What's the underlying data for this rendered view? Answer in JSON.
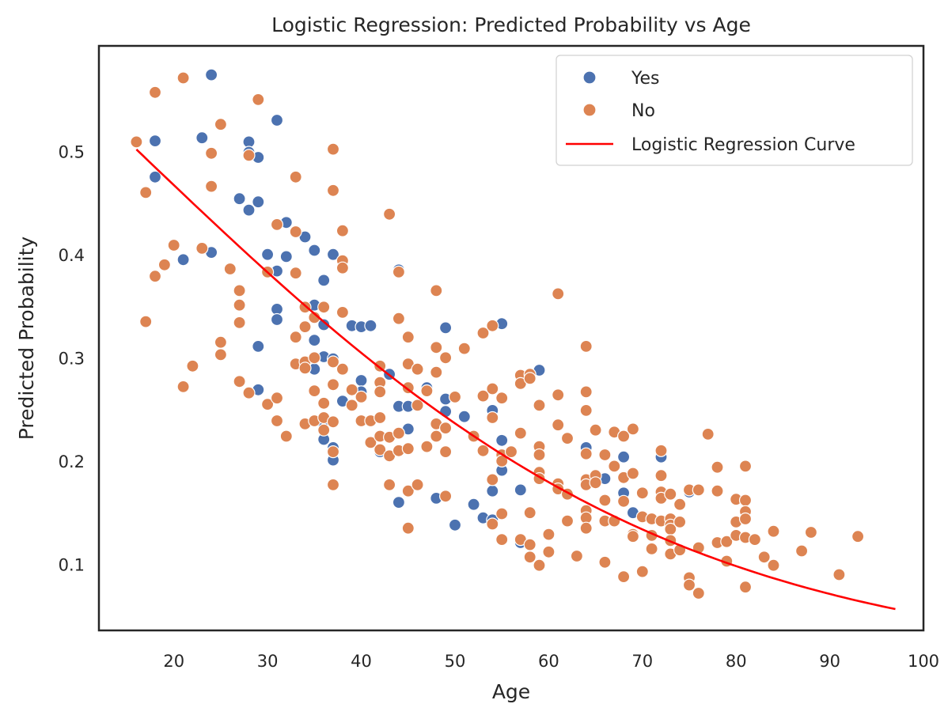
{
  "chart_data": {
    "type": "scatter",
    "title": "Logistic Regression: Predicted Probability vs Age",
    "xlabel": "Age",
    "ylabel": "Predicted Probability",
    "xlim": [
      12,
      100
    ],
    "ylim": [
      0.037,
      0.603
    ],
    "xticks": [
      20,
      30,
      40,
      50,
      60,
      70,
      80,
      90,
      100
    ],
    "yticks": [
      0.1,
      0.2,
      0.3,
      0.4,
      0.5
    ],
    "grid": false,
    "legend_position": "top-right",
    "series": [
      {
        "name": "Yes",
        "kind": "scatter",
        "color": "#4c72b0",
        "points": [
          [
            18,
            0.511
          ],
          [
            18,
            0.476
          ],
          [
            21,
            0.396
          ],
          [
            23,
            0.514
          ],
          [
            24,
            0.575
          ],
          [
            24,
            0.403
          ],
          [
            27,
            0.455
          ],
          [
            28,
            0.51
          ],
          [
            28,
            0.5
          ],
          [
            28,
            0.444
          ],
          [
            29,
            0.495
          ],
          [
            29,
            0.452
          ],
          [
            29,
            0.312
          ],
          [
            29,
            0.27
          ],
          [
            30,
            0.401
          ],
          [
            31,
            0.531
          ],
          [
            31,
            0.385
          ],
          [
            31,
            0.348
          ],
          [
            31,
            0.338
          ],
          [
            32,
            0.432
          ],
          [
            32,
            0.399
          ],
          [
            34,
            0.418
          ],
          [
            35,
            0.405
          ],
          [
            35,
            0.352
          ],
          [
            35,
            0.318
          ],
          [
            35,
            0.29
          ],
          [
            36,
            0.376
          ],
          [
            36,
            0.333
          ],
          [
            36,
            0.302
          ],
          [
            36,
            0.237
          ],
          [
            36,
            0.222
          ],
          [
            37,
            0.401
          ],
          [
            37,
            0.3
          ],
          [
            37,
            0.214
          ],
          [
            37,
            0.202
          ],
          [
            38,
            0.259
          ],
          [
            39,
            0.332
          ],
          [
            40,
            0.331
          ],
          [
            40,
            0.279
          ],
          [
            40,
            0.268
          ],
          [
            41,
            0.332
          ],
          [
            42,
            0.293
          ],
          [
            42,
            0.21
          ],
          [
            43,
            0.285
          ],
          [
            44,
            0.386
          ],
          [
            44,
            0.254
          ],
          [
            44,
            0.161
          ],
          [
            45,
            0.254
          ],
          [
            45,
            0.232
          ],
          [
            47,
            0.272
          ],
          [
            48,
            0.165
          ],
          [
            49,
            0.33
          ],
          [
            49,
            0.261
          ],
          [
            49,
            0.249
          ],
          [
            50,
            0.139
          ],
          [
            51,
            0.244
          ],
          [
            52,
            0.159
          ],
          [
            53,
            0.146
          ],
          [
            54,
            0.25
          ],
          [
            54,
            0.172
          ],
          [
            54,
            0.144
          ],
          [
            55,
            0.334
          ],
          [
            55,
            0.221
          ],
          [
            55,
            0.192
          ],
          [
            57,
            0.173
          ],
          [
            57,
            0.122
          ],
          [
            59,
            0.289
          ],
          [
            64,
            0.214
          ],
          [
            66,
            0.184
          ],
          [
            68,
            0.205
          ],
          [
            68,
            0.17
          ],
          [
            69,
            0.151
          ],
          [
            72,
            0.205
          ],
          [
            75,
            0.171
          ]
        ]
      },
      {
        "name": "No",
        "kind": "scatter",
        "color": "#dd8452",
        "points": [
          [
            16,
            0.51
          ],
          [
            17,
            0.461
          ],
          [
            17,
            0.336
          ],
          [
            18,
            0.558
          ],
          [
            18,
            0.38
          ],
          [
            19,
            0.391
          ],
          [
            20,
            0.41
          ],
          [
            21,
            0.572
          ],
          [
            21,
            0.273
          ],
          [
            22,
            0.293
          ],
          [
            23,
            0.407
          ],
          [
            24,
            0.499
          ],
          [
            24,
            0.467
          ],
          [
            25,
            0.527
          ],
          [
            25,
            0.316
          ],
          [
            25,
            0.304
          ],
          [
            26,
            0.387
          ],
          [
            27,
            0.366
          ],
          [
            27,
            0.352
          ],
          [
            27,
            0.335
          ],
          [
            27,
            0.278
          ],
          [
            28,
            0.497
          ],
          [
            28,
            0.267
          ],
          [
            29,
            0.551
          ],
          [
            30,
            0.384
          ],
          [
            30,
            0.256
          ],
          [
            31,
            0.43
          ],
          [
            31,
            0.262
          ],
          [
            31,
            0.24
          ],
          [
            32,
            0.225
          ],
          [
            33,
            0.476
          ],
          [
            33,
            0.423
          ],
          [
            33,
            0.383
          ],
          [
            33,
            0.321
          ],
          [
            33,
            0.295
          ],
          [
            34,
            0.35
          ],
          [
            34,
            0.331
          ],
          [
            34,
            0.297
          ],
          [
            34,
            0.291
          ],
          [
            34,
            0.237
          ],
          [
            35,
            0.34
          ],
          [
            35,
            0.301
          ],
          [
            35,
            0.269
          ],
          [
            35,
            0.24
          ],
          [
            36,
            0.35
          ],
          [
            36,
            0.257
          ],
          [
            36,
            0.243
          ],
          [
            36,
            0.231
          ],
          [
            37,
            0.503
          ],
          [
            37,
            0.463
          ],
          [
            37,
            0.297
          ],
          [
            37,
            0.275
          ],
          [
            37,
            0.239
          ],
          [
            37,
            0.21
          ],
          [
            37,
            0.178
          ],
          [
            38,
            0.424
          ],
          [
            38,
            0.395
          ],
          [
            38,
            0.388
          ],
          [
            38,
            0.345
          ],
          [
            38,
            0.29
          ],
          [
            39,
            0.27
          ],
          [
            39,
            0.255
          ],
          [
            40,
            0.263
          ],
          [
            40,
            0.24
          ],
          [
            41,
            0.24
          ],
          [
            41,
            0.219
          ],
          [
            42,
            0.293
          ],
          [
            42,
            0.277
          ],
          [
            42,
            0.268
          ],
          [
            42,
            0.243
          ],
          [
            42,
            0.225
          ],
          [
            42,
            0.212
          ],
          [
            43,
            0.44
          ],
          [
            43,
            0.224
          ],
          [
            43,
            0.206
          ],
          [
            43,
            0.178
          ],
          [
            44,
            0.384
          ],
          [
            44,
            0.339
          ],
          [
            44,
            0.228
          ],
          [
            44,
            0.211
          ],
          [
            45,
            0.321
          ],
          [
            45,
            0.295
          ],
          [
            45,
            0.272
          ],
          [
            45,
            0.213
          ],
          [
            45,
            0.172
          ],
          [
            45,
            0.136
          ],
          [
            46,
            0.29
          ],
          [
            46,
            0.255
          ],
          [
            46,
            0.178
          ],
          [
            47,
            0.269
          ],
          [
            47,
            0.215
          ],
          [
            48,
            0.366
          ],
          [
            48,
            0.311
          ],
          [
            48,
            0.287
          ],
          [
            48,
            0.237
          ],
          [
            48,
            0.225
          ],
          [
            49,
            0.301
          ],
          [
            49,
            0.233
          ],
          [
            49,
            0.21
          ],
          [
            49,
            0.167
          ],
          [
            50,
            0.263
          ],
          [
            51,
            0.31
          ],
          [
            52,
            0.225
          ],
          [
            53,
            0.325
          ],
          [
            53,
            0.264
          ],
          [
            53,
            0.211
          ],
          [
            54,
            0.332
          ],
          [
            54,
            0.271
          ],
          [
            54,
            0.243
          ],
          [
            54,
            0.183
          ],
          [
            54,
            0.14
          ],
          [
            55,
            0.262
          ],
          [
            55,
            0.207
          ],
          [
            55,
            0.201
          ],
          [
            55,
            0.15
          ],
          [
            55,
            0.125
          ],
          [
            56,
            0.21
          ],
          [
            57,
            0.284
          ],
          [
            57,
            0.276
          ],
          [
            57,
            0.228
          ],
          [
            57,
            0.125
          ],
          [
            58,
            0.285
          ],
          [
            58,
            0.281
          ],
          [
            58,
            0.151
          ],
          [
            58,
            0.12
          ],
          [
            58,
            0.108
          ],
          [
            59,
            0.255
          ],
          [
            59,
            0.215
          ],
          [
            59,
            0.207
          ],
          [
            59,
            0.19
          ],
          [
            59,
            0.184
          ],
          [
            59,
            0.1
          ],
          [
            60,
            0.13
          ],
          [
            60,
            0.113
          ],
          [
            61,
            0.363
          ],
          [
            61,
            0.265
          ],
          [
            61,
            0.236
          ],
          [
            61,
            0.179
          ],
          [
            61,
            0.174
          ],
          [
            62,
            0.223
          ],
          [
            62,
            0.169
          ],
          [
            62,
            0.143
          ],
          [
            63,
            0.109
          ],
          [
            64,
            0.312
          ],
          [
            64,
            0.268
          ],
          [
            64,
            0.25
          ],
          [
            64,
            0.208
          ],
          [
            64,
            0.183
          ],
          [
            64,
            0.178
          ],
          [
            64,
            0.153
          ],
          [
            64,
            0.146
          ],
          [
            64,
            0.136
          ],
          [
            65,
            0.231
          ],
          [
            65,
            0.187
          ],
          [
            65,
            0.18
          ],
          [
            66,
            0.207
          ],
          [
            66,
            0.163
          ],
          [
            66,
            0.143
          ],
          [
            66,
            0.103
          ],
          [
            67,
            0.229
          ],
          [
            67,
            0.196
          ],
          [
            67,
            0.143
          ],
          [
            68,
            0.225
          ],
          [
            68,
            0.185
          ],
          [
            68,
            0.162
          ],
          [
            68,
            0.089
          ],
          [
            69,
            0.232
          ],
          [
            69,
            0.189
          ],
          [
            69,
            0.13
          ],
          [
            69,
            0.128
          ],
          [
            70,
            0.17
          ],
          [
            70,
            0.147
          ],
          [
            70,
            0.094
          ],
          [
            71,
            0.145
          ],
          [
            71,
            0.129
          ],
          [
            71,
            0.116
          ],
          [
            72,
            0.211
          ],
          [
            72,
            0.187
          ],
          [
            72,
            0.171
          ],
          [
            72,
            0.165
          ],
          [
            72,
            0.143
          ],
          [
            73,
            0.169
          ],
          [
            73,
            0.145
          ],
          [
            73,
            0.139
          ],
          [
            73,
            0.135
          ],
          [
            73,
            0.124
          ],
          [
            73,
            0.111
          ],
          [
            74,
            0.159
          ],
          [
            74,
            0.142
          ],
          [
            74,
            0.115
          ],
          [
            75,
            0.173
          ],
          [
            75,
            0.088
          ],
          [
            75,
            0.081
          ],
          [
            76,
            0.173
          ],
          [
            76,
            0.117
          ],
          [
            76,
            0.073
          ],
          [
            77,
            0.227
          ],
          [
            78,
            0.195
          ],
          [
            78,
            0.172
          ],
          [
            78,
            0.122
          ],
          [
            79,
            0.123
          ],
          [
            79,
            0.104
          ],
          [
            80,
            0.164
          ],
          [
            80,
            0.142
          ],
          [
            80,
            0.129
          ],
          [
            81,
            0.196
          ],
          [
            81,
            0.163
          ],
          [
            81,
            0.152
          ],
          [
            81,
            0.145
          ],
          [
            81,
            0.127
          ],
          [
            81,
            0.079
          ],
          [
            82,
            0.125
          ],
          [
            83,
            0.108
          ],
          [
            84,
            0.133
          ],
          [
            84,
            0.1
          ],
          [
            87,
            0.114
          ],
          [
            88,
            0.132
          ],
          [
            91,
            0.091
          ],
          [
            93,
            0.128
          ]
        ]
      },
      {
        "name": "Logistic Regression Curve",
        "kind": "line",
        "color": "#ff0000",
        "x_range": [
          16,
          97
        ],
        "intercept": 0.565,
        "slope": -0.03463
      }
    ]
  }
}
